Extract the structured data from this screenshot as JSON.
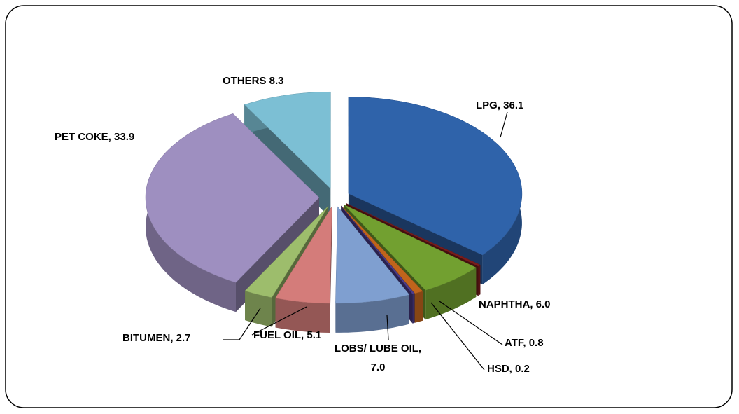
{
  "chart_data": {
    "type": "pie",
    "value_labels": [
      "LPG, 36.1",
      null,
      "NAPHTHA, 6.0",
      "ATF, 0.8",
      "HSD, 0.2",
      "LOBS/ LUBE OIL, 7.0",
      "FUEL OIL, 5.1",
      "BITUMEN, 2.7",
      "PET COKE, 33.9",
      "OTHERS 8.3"
    ],
    "values": [
      36.1,
      0.3,
      6.0,
      0.8,
      0.2,
      7.0,
      5.1,
      2.7,
      33.9,
      8.3
    ],
    "colors": [
      "#2f63aa",
      "#7a1c1c",
      "#72a030",
      "#c0641c",
      "#4c3c8c",
      "#7f9fd0",
      "#d47c7a",
      "#9dbd6c",
      "#9e8fc0",
      "#7cbfd4"
    ]
  }
}
